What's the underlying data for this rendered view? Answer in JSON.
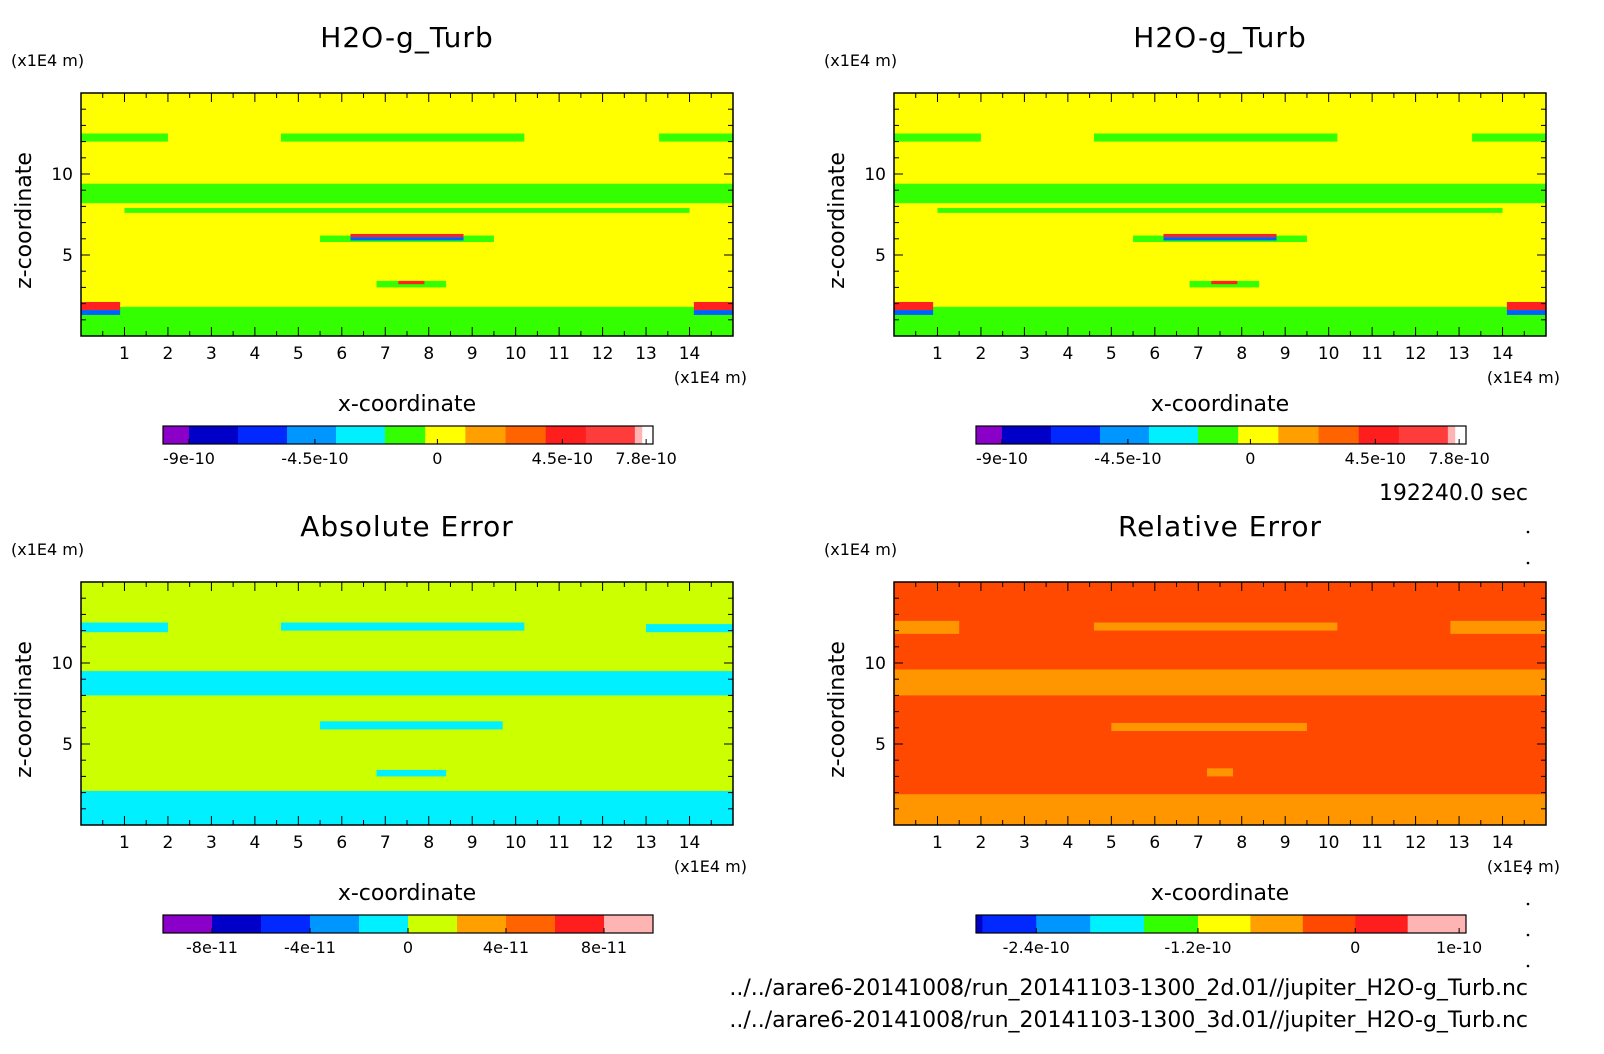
{
  "time_label": "192240.0 sec",
  "files": [
    "../../arare6-20141008/run_20141103-1300_2d.01//jupiter_H2O-g_Turb.nc",
    "../../arare6-20141008/run_20141103-1300_3d.01//jupiter_H2O-g_Turb.nc"
  ],
  "chart_data": [
    {
      "type": "heatmap",
      "title": "H2O-g_Turb",
      "xlabel": "x-coordinate",
      "ylabel": "z-coordinate",
      "x_unit": "(x1E4 m)",
      "y_unit": "(x1E4 m)",
      "xlim": [
        0,
        15
      ],
      "ylim": [
        0,
        15
      ],
      "xticks": [
        "1",
        "2",
        "3",
        "4",
        "5",
        "6",
        "7",
        "8",
        "9",
        "10",
        "11",
        "12",
        "13",
        "14"
      ],
      "yticks": [
        "5",
        "10"
      ],
      "background_color": "#ffff00",
      "features": [
        {
          "x0": 0,
          "x1": 2.0,
          "z0": 12.0,
          "z1": 12.5,
          "color": "#33ff00"
        },
        {
          "x0": 4.6,
          "x1": 10.2,
          "z0": 12.0,
          "z1": 12.5,
          "color": "#33ff00"
        },
        {
          "x0": 13.3,
          "x1": 15,
          "z0": 12.0,
          "z1": 12.5,
          "color": "#33ff00"
        },
        {
          "x0": 0,
          "x1": 15,
          "z0": 8.2,
          "z1": 9.4,
          "color": "#33ff00"
        },
        {
          "x0": 1.0,
          "x1": 14.0,
          "z0": 7.6,
          "z1": 7.9,
          "color": "#33ff00"
        },
        {
          "x0": 5.5,
          "x1": 9.5,
          "z0": 5.8,
          "z1": 6.2,
          "color": "#33ff00"
        },
        {
          "x0": 6.2,
          "x1": 8.8,
          "z0": 6.1,
          "z1": 6.3,
          "color": "#ff2020"
        },
        {
          "x0": 6.2,
          "x1": 8.8,
          "z0": 5.9,
          "z1": 6.1,
          "color": "#0060ff"
        },
        {
          "x0": 6.8,
          "x1": 8.4,
          "z0": 3.0,
          "z1": 3.4,
          "color": "#33ff00"
        },
        {
          "x0": 7.3,
          "x1": 7.9,
          "z0": 3.2,
          "z1": 3.4,
          "color": "#ff2020"
        },
        {
          "x0": 0,
          "x1": 15,
          "z0": 0,
          "z1": 1.8,
          "color": "#33ff00"
        },
        {
          "x0": 0,
          "x1": 0.9,
          "z0": 1.6,
          "z1": 2.1,
          "color": "#ff2020"
        },
        {
          "x0": 0,
          "x1": 0.9,
          "z0": 1.3,
          "z1": 1.6,
          "color": "#0060ff"
        },
        {
          "x0": 14.1,
          "x1": 15,
          "z0": 1.6,
          "z1": 2.1,
          "color": "#ff2020"
        },
        {
          "x0": 14.1,
          "x1": 15,
          "z0": 1.3,
          "z1": 1.6,
          "color": "#0060ff"
        }
      ],
      "colorbar": {
        "colors": [
          "#8a00c8",
          "#0000c8",
          "#0028ff",
          "#0096ff",
          "#00f0ff",
          "#33ff00",
          "#ffff00",
          "#ffa000",
          "#ff6400",
          "#ff1e1e",
          "#ff3c3c",
          "#ffb4b4"
        ],
        "width_fractions": [
          0.053,
          0.1,
          0.1,
          0.1,
          0.1,
          0.082,
          0.082,
          0.082,
          0.082,
          0.082,
          0.1,
          0.014
        ],
        "tick_labels": [
          "-9e-10",
          "-4.5e-10",
          "0",
          "4.5e-10",
          "7.8e-10"
        ],
        "tick_fractions": [
          0.053,
          0.31,
          0.56,
          0.815,
          0.986
        ]
      }
    },
    {
      "type": "heatmap",
      "title": "H2O-g_Turb",
      "xlabel": "x-coordinate",
      "ylabel": "z-coordinate",
      "x_unit": "(x1E4 m)",
      "y_unit": "(x1E4 m)",
      "xlim": [
        0,
        15
      ],
      "ylim": [
        0,
        15
      ],
      "xticks": [
        "1",
        "2",
        "3",
        "4",
        "5",
        "6",
        "7",
        "8",
        "9",
        "10",
        "11",
        "12",
        "13",
        "14"
      ],
      "yticks": [
        "5",
        "10"
      ],
      "background_color": "#ffff00",
      "features": [
        {
          "x0": 0,
          "x1": 2.0,
          "z0": 12.0,
          "z1": 12.5,
          "color": "#33ff00"
        },
        {
          "x0": 4.6,
          "x1": 10.2,
          "z0": 12.0,
          "z1": 12.5,
          "color": "#33ff00"
        },
        {
          "x0": 13.3,
          "x1": 15,
          "z0": 12.0,
          "z1": 12.5,
          "color": "#33ff00"
        },
        {
          "x0": 0,
          "x1": 15,
          "z0": 8.2,
          "z1": 9.4,
          "color": "#33ff00"
        },
        {
          "x0": 1.0,
          "x1": 14.0,
          "z0": 7.6,
          "z1": 7.9,
          "color": "#33ff00"
        },
        {
          "x0": 5.5,
          "x1": 9.5,
          "z0": 5.8,
          "z1": 6.2,
          "color": "#33ff00"
        },
        {
          "x0": 6.2,
          "x1": 8.8,
          "z0": 6.1,
          "z1": 6.3,
          "color": "#ff2020"
        },
        {
          "x0": 6.2,
          "x1": 8.8,
          "z0": 5.9,
          "z1": 6.1,
          "color": "#0060ff"
        },
        {
          "x0": 6.8,
          "x1": 8.4,
          "z0": 3.0,
          "z1": 3.4,
          "color": "#33ff00"
        },
        {
          "x0": 7.3,
          "x1": 7.9,
          "z0": 3.2,
          "z1": 3.4,
          "color": "#ff2020"
        },
        {
          "x0": 0,
          "x1": 15,
          "z0": 0,
          "z1": 1.8,
          "color": "#33ff00"
        },
        {
          "x0": 0,
          "x1": 0.9,
          "z0": 1.6,
          "z1": 2.1,
          "color": "#ff2020"
        },
        {
          "x0": 0,
          "x1": 0.9,
          "z0": 1.3,
          "z1": 1.6,
          "color": "#0060ff"
        },
        {
          "x0": 14.1,
          "x1": 15,
          "z0": 1.6,
          "z1": 2.1,
          "color": "#ff2020"
        },
        {
          "x0": 14.1,
          "x1": 15,
          "z0": 1.3,
          "z1": 1.6,
          "color": "#0060ff"
        }
      ],
      "colorbar": {
        "colors": [
          "#8a00c8",
          "#0000c8",
          "#0028ff",
          "#0096ff",
          "#00f0ff",
          "#33ff00",
          "#ffff00",
          "#ffa000",
          "#ff6400",
          "#ff1e1e",
          "#ff3c3c",
          "#ffb4b4"
        ],
        "width_fractions": [
          0.053,
          0.1,
          0.1,
          0.1,
          0.1,
          0.082,
          0.082,
          0.082,
          0.082,
          0.082,
          0.1,
          0.014
        ],
        "tick_labels": [
          "-9e-10",
          "-4.5e-10",
          "0",
          "4.5e-10",
          "7.8e-10"
        ],
        "tick_fractions": [
          0.053,
          0.31,
          0.56,
          0.815,
          0.986
        ]
      }
    },
    {
      "type": "heatmap",
      "title": "Absolute Error",
      "xlabel": "x-coordinate",
      "ylabel": "z-coordinate",
      "x_unit": "(x1E4 m)",
      "y_unit": "(x1E4 m)",
      "xlim": [
        0,
        15
      ],
      "ylim": [
        0,
        15
      ],
      "xticks": [
        "1",
        "2",
        "3",
        "4",
        "5",
        "6",
        "7",
        "8",
        "9",
        "10",
        "11",
        "12",
        "13",
        "14"
      ],
      "yticks": [
        "5",
        "10"
      ],
      "background_color": "#ccff00",
      "features": [
        {
          "x0": 0,
          "x1": 2.0,
          "z0": 11.9,
          "z1": 12.5,
          "color": "#00f0ff"
        },
        {
          "x0": 4.6,
          "x1": 10.2,
          "z0": 12.0,
          "z1": 12.5,
          "color": "#00f0ff"
        },
        {
          "x0": 13.0,
          "x1": 15,
          "z0": 11.9,
          "z1": 12.4,
          "color": "#00f0ff"
        },
        {
          "x0": 0,
          "x1": 15,
          "z0": 8.0,
          "z1": 9.5,
          "color": "#00f0ff"
        },
        {
          "x0": 5.5,
          "x1": 9.7,
          "z0": 5.9,
          "z1": 6.4,
          "color": "#00f0ff"
        },
        {
          "x0": 6.8,
          "x1": 8.4,
          "z0": 3.0,
          "z1": 3.4,
          "color": "#00f0ff"
        },
        {
          "x0": 0,
          "x1": 15,
          "z0": 0,
          "z1": 2.1,
          "color": "#00f0ff"
        }
      ],
      "colorbar": {
        "colors": [
          "#8a00c8",
          "#0000c8",
          "#0028ff",
          "#0096ff",
          "#00f0ff",
          "#ccff00",
          "#ffa000",
          "#ff6400",
          "#ff1e1e",
          "#ffb4b4"
        ],
        "width_fractions": [
          0.1,
          0.1,
          0.1,
          0.1,
          0.1,
          0.1,
          0.1,
          0.1,
          0.1,
          0.1
        ],
        "tick_labels": [
          "-8e-11",
          "-4e-11",
          "0",
          "4e-11",
          "8e-11"
        ],
        "tick_fractions": [
          0.1,
          0.3,
          0.5,
          0.7,
          0.9
        ]
      }
    },
    {
      "type": "heatmap",
      "title": "Relative Error",
      "xlabel": "x-coordinate",
      "ylabel": "z-coordinate",
      "x_unit": "(x1E4 m)",
      "y_unit": "(x1E4 m)",
      "xlim": [
        0,
        15
      ],
      "ylim": [
        0,
        15
      ],
      "xticks": [
        "1",
        "2",
        "3",
        "4",
        "5",
        "6",
        "7",
        "8",
        "9",
        "10",
        "11",
        "12",
        "13",
        "14"
      ],
      "yticks": [
        "5",
        "10"
      ],
      "background_color": "#ff4800",
      "features": [
        {
          "x0": 0,
          "x1": 1.5,
          "z0": 11.8,
          "z1": 12.6,
          "color": "#ff9600"
        },
        {
          "x0": 4.6,
          "x1": 10.2,
          "z0": 12.0,
          "z1": 12.5,
          "color": "#ff9600"
        },
        {
          "x0": 12.8,
          "x1": 15,
          "z0": 11.8,
          "z1": 12.6,
          "color": "#ff9600"
        },
        {
          "x0": 0,
          "x1": 15,
          "z0": 8.0,
          "z1": 9.6,
          "color": "#ff9600"
        },
        {
          "x0": 5.0,
          "x1": 9.5,
          "z0": 5.8,
          "z1": 6.3,
          "color": "#ff9600"
        },
        {
          "x0": 7.2,
          "x1": 7.8,
          "z0": 3.0,
          "z1": 3.5,
          "color": "#ff9600"
        },
        {
          "x0": 0,
          "x1": 15,
          "z0": 0,
          "z1": 1.9,
          "color": "#ff9600"
        }
      ],
      "colorbar": {
        "colors": [
          "#0000c8",
          "#0028ff",
          "#0096ff",
          "#00f0ff",
          "#33ff00",
          "#ffff00",
          "#ffa000",
          "#ff4800",
          "#ff1e1e",
          "#ffb4b4"
        ],
        "width_fractions": [
          0.013,
          0.11,
          0.11,
          0.11,
          0.11,
          0.107,
          0.107,
          0.107,
          0.107,
          0.119
        ],
        "tick_labels": [
          "-2.4e-10",
          "-1.2e-10",
          "0",
          "1e-10"
        ],
        "tick_fractions": [
          0.123,
          0.453,
          0.774,
          0.986
        ]
      }
    }
  ]
}
